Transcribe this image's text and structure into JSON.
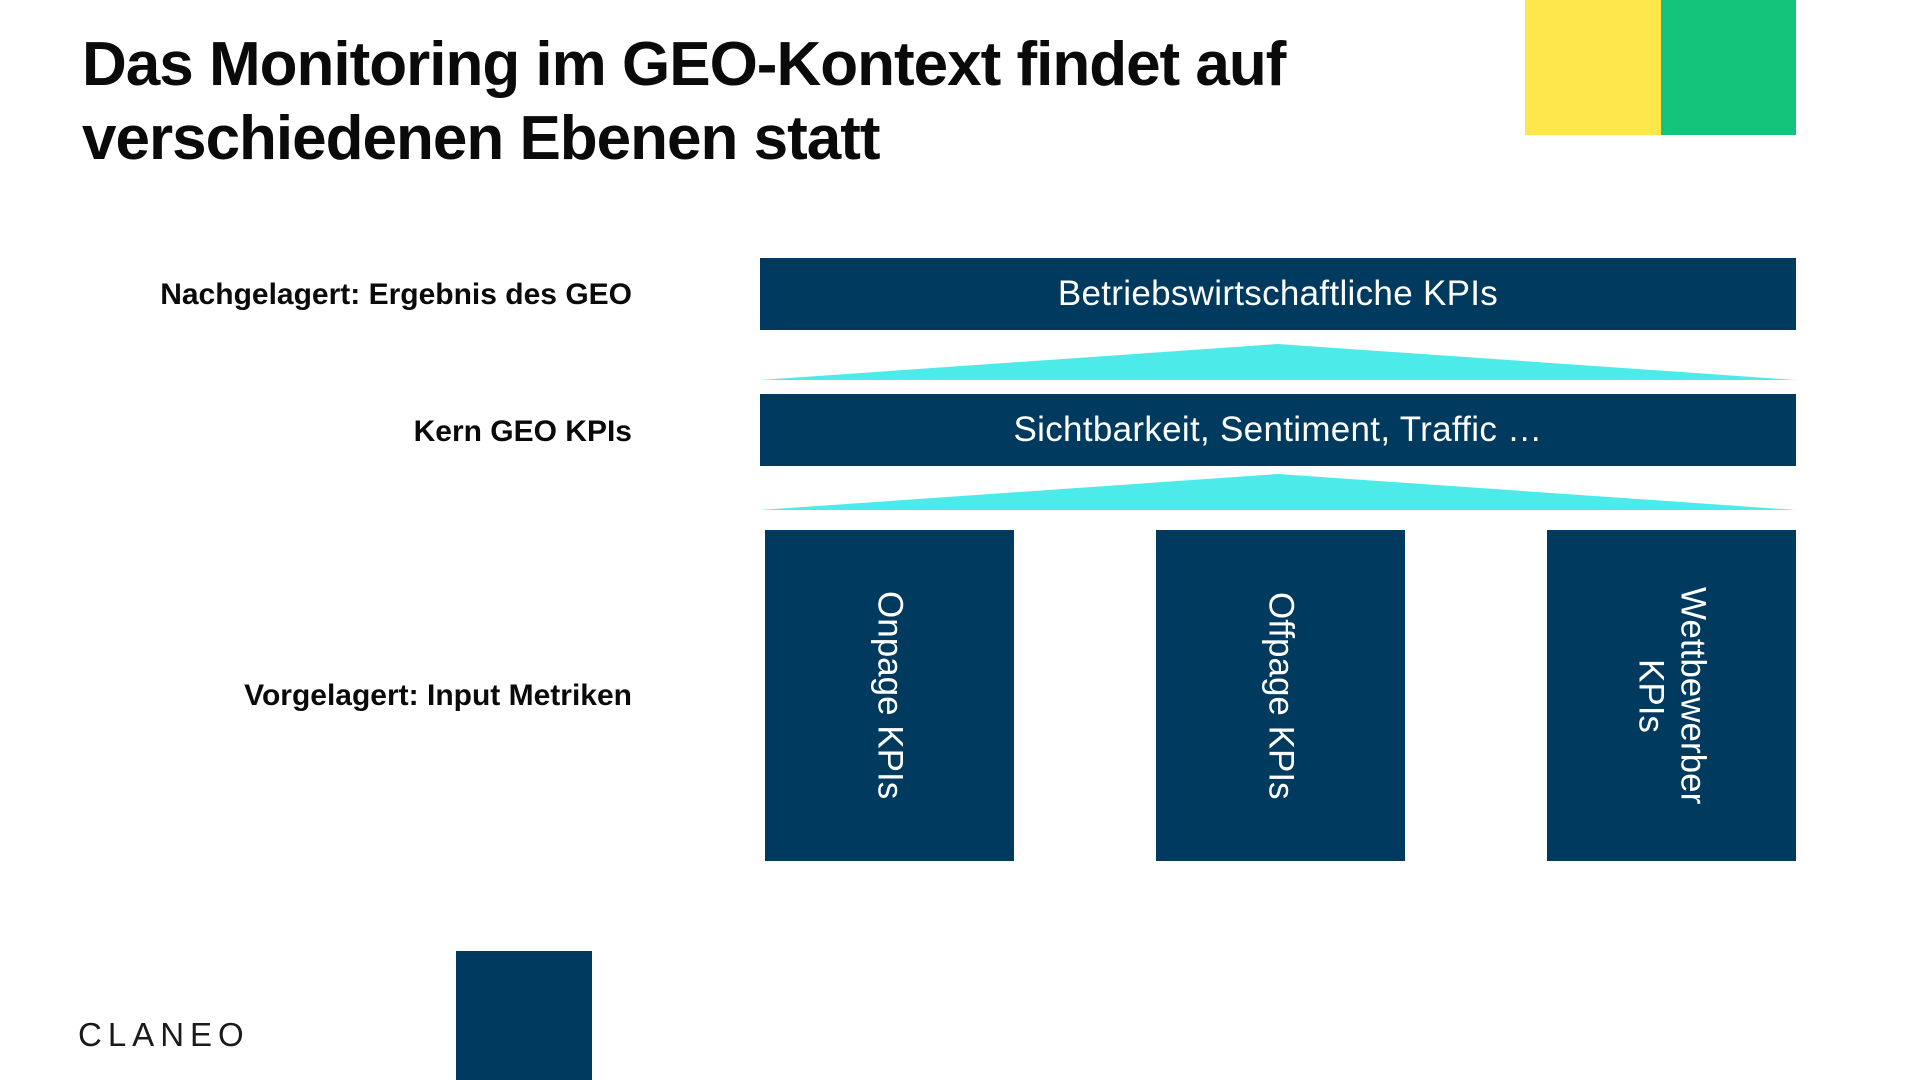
{
  "title": "Das Monitoring im GEO-Kontext findet auf\nverschiedenen Ebenen statt",
  "colors": {
    "navy": "#003a5e",
    "cyan": "#4deaea",
    "yellow": "#fde74c",
    "green": "#14c47a"
  },
  "levels": {
    "top_label": "Nachgelagert: Ergebnis des GEO",
    "mid_label": "Kern GEO KPIs",
    "bottom_label": "Vorgelagert: Input Metriken"
  },
  "bars": {
    "top": "Betriebswirtschaftliche KPIs",
    "mid": "Sichtbarkeit, Sentiment, Traffic …"
  },
  "pillars": [
    "Onpage KPIs",
    "Offpage KPIs",
    "Wettbewerber\nKPIs"
  ],
  "logo": "CLANEO"
}
